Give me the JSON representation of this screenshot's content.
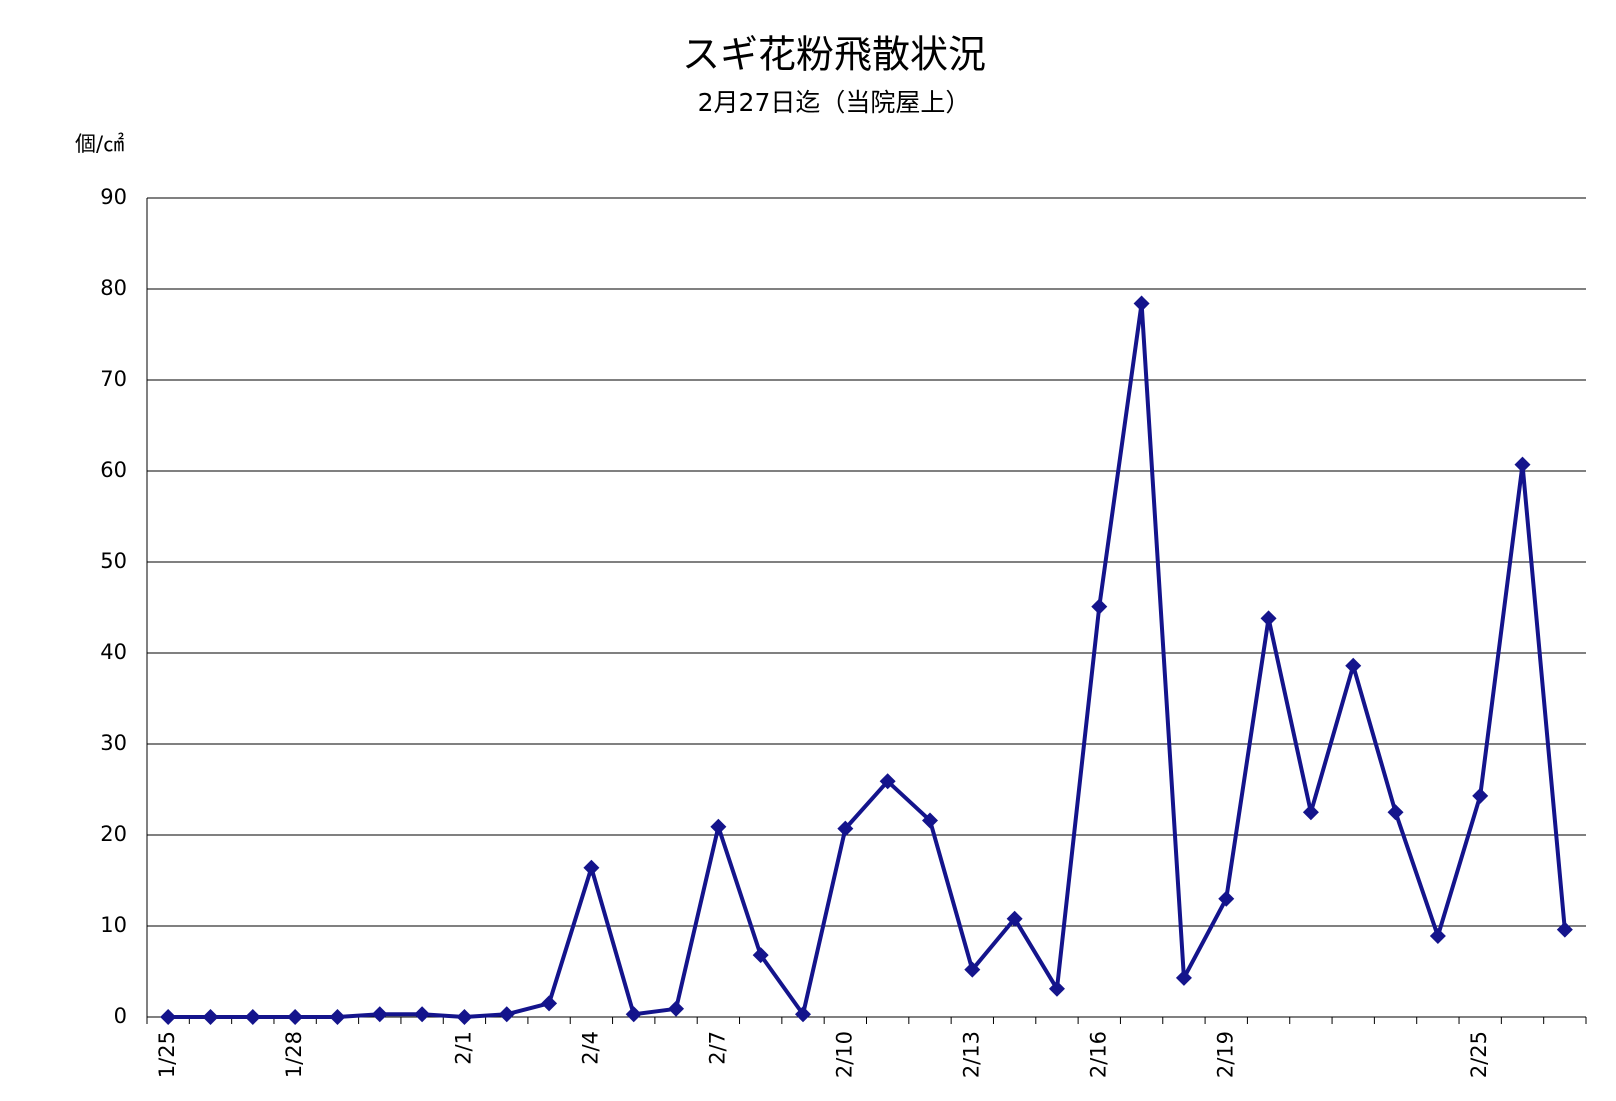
{
  "chart_data": {
    "type": "line",
    "title": "スギ花粉飛散状況",
    "subtitle": "2月27日迄（当院屋上）",
    "y_label": "個/㎠",
    "categories": [
      "1/25",
      null,
      null,
      "1/28",
      null,
      null,
      null,
      "2/1",
      null,
      null,
      "2/4",
      null,
      null,
      "2/7",
      null,
      null,
      "2/10",
      null,
      null,
      "2/13",
      null,
      null,
      "2/16",
      null,
      null,
      "2/19",
      null,
      null,
      null,
      null,
      null,
      "2/25",
      null,
      null
    ],
    "series": [
      {
        "name": "スギ花粉",
        "color": "#14148c",
        "values": [
          0,
          0,
          0,
          0,
          0,
          0.3,
          0.3,
          0,
          0.3,
          1.5,
          16.4,
          0.3,
          0.9,
          20.9,
          6.8,
          0.3,
          20.7,
          25.9,
          21.6,
          5.2,
          10.8,
          3.1,
          45.1,
          78.4,
          4.3,
          13.0,
          43.8,
          22.5,
          38.6,
          22.5,
          8.9,
          24.3,
          60.7,
          9.6
        ]
      }
    ],
    "ylim": [
      0,
      90
    ],
    "yticks": [
      0,
      10,
      20,
      30,
      40,
      50,
      60,
      70,
      80,
      90
    ],
    "grid": true
  }
}
